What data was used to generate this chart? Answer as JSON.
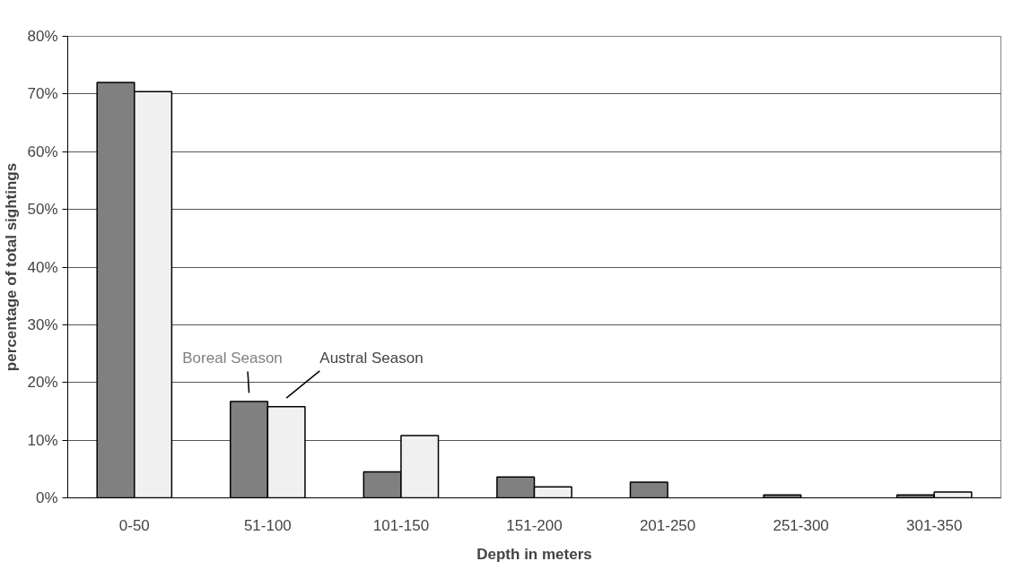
{
  "chart_data": {
    "type": "bar",
    "xlabel": "Depth in meters",
    "ylabel": "percentage of total sightings",
    "categories": [
      "0-50",
      "51-100",
      "101-150",
      "151-200",
      "201-250",
      "251-300",
      "301-350"
    ],
    "series": [
      {
        "name": "Boreal Season",
        "color": "#808080",
        "values": [
          72,
          16.7,
          4.5,
          3.6,
          2.7,
          0.5,
          0.5
        ]
      },
      {
        "name": "Austral Season",
        "color": "#f0f0f0",
        "values": [
          70.4,
          15.8,
          10.8,
          1.9,
          0,
          0,
          1.0
        ]
      }
    ],
    "ylim": [
      0,
      80
    ],
    "yticks": [
      {
        "value": 0,
        "label": "0%"
      },
      {
        "value": 10,
        "label": "10%"
      },
      {
        "value": 20,
        "label": "20%"
      },
      {
        "value": 30,
        "label": "30%"
      },
      {
        "value": 40,
        "label": "40%"
      },
      {
        "value": 50,
        "label": "50%"
      },
      {
        "value": 60,
        "label": "60%"
      },
      {
        "value": 70,
        "label": "70%"
      },
      {
        "value": 80,
        "label": "80%"
      }
    ],
    "grid": "y"
  }
}
